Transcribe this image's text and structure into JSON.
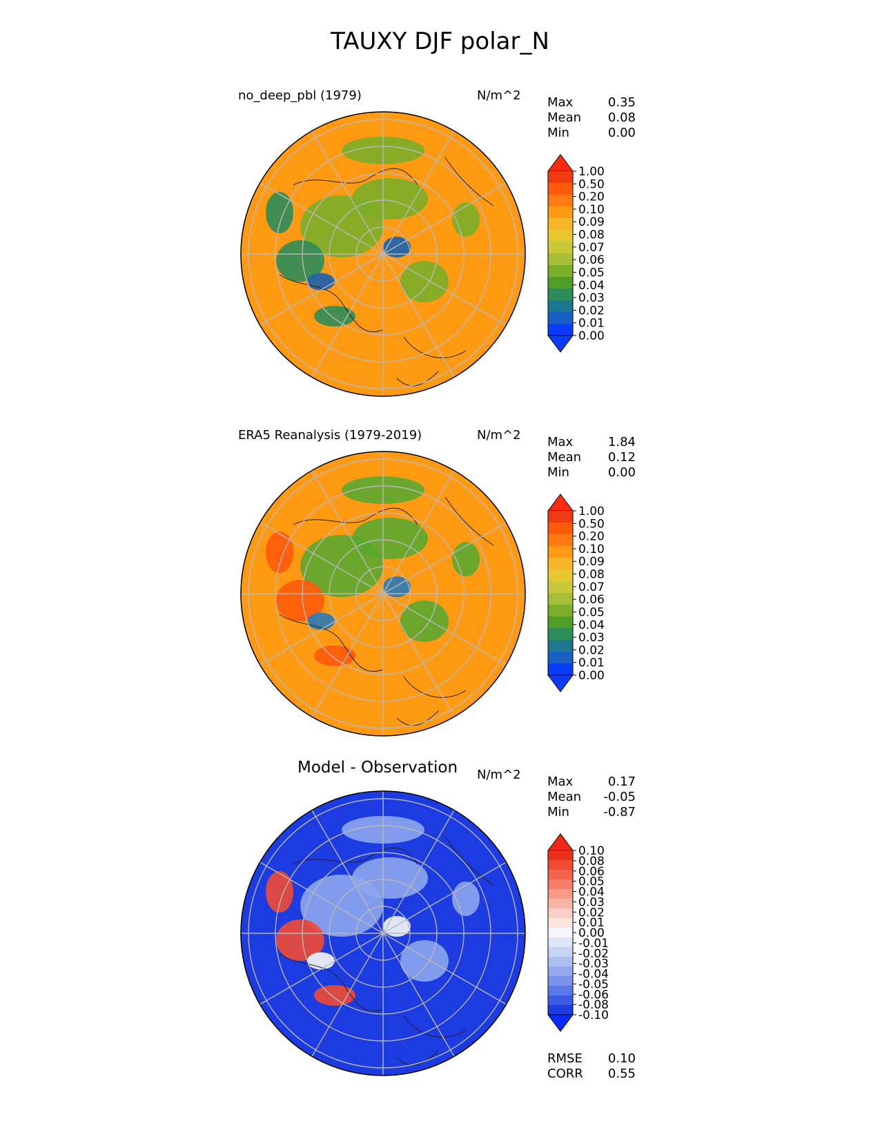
{
  "figure_title": "TAUXY DJF polar_N",
  "panels": [
    {
      "title": "no_deep_pbl (1979)",
      "units": "N/m^2",
      "stats": [
        {
          "label": "Max",
          "value": "0.35"
        },
        {
          "label": "Mean",
          "value": "0.08"
        },
        {
          "label": "Min",
          "value": "0.00"
        }
      ],
      "colorbar": {
        "labels": [
          "1.00",
          "0.50",
          "0.20",
          "0.10",
          "0.09",
          "0.08",
          "0.07",
          "0.06",
          "0.05",
          "0.04",
          "0.03",
          "0.02",
          "0.01",
          "0.00"
        ],
        "colors": [
          "#f03a12",
          "#ff5a0a",
          "#ff7a10",
          "#ff9a12",
          "#f6b52a",
          "#e8c830",
          "#c8c83a",
          "#a8be38",
          "#7cae2a",
          "#4e9e28",
          "#2e8c5a",
          "#1c7890",
          "#1860c4",
          "#0a3cff"
        ],
        "extend_top": "#ff2a10",
        "extend_bottom": "#0a3cff"
      },
      "map_colors": {
        "base": "#ff9a12",
        "ocean_low": "#7cae2a",
        "land_low": "#2e8c5a",
        "lowest": "#1c60b0"
      }
    },
    {
      "title": "ERA5 Reanalysis (1979-2019)",
      "units": "N/m^2",
      "stats": [
        {
          "label": "Max",
          "value": "1.84"
        },
        {
          "label": "Mean",
          "value": "0.12"
        },
        {
          "label": "Min",
          "value": "0.00"
        }
      ],
      "colorbar": {
        "labels": [
          "1.00",
          "0.50",
          "0.20",
          "0.10",
          "0.09",
          "0.08",
          "0.07",
          "0.06",
          "0.05",
          "0.04",
          "0.03",
          "0.02",
          "0.01",
          "0.00"
        ],
        "colors": [
          "#f03a12",
          "#ff5a0a",
          "#ff7a10",
          "#ff9a12",
          "#f6b52a",
          "#e8c830",
          "#c8c83a",
          "#a8be38",
          "#7cae2a",
          "#4e9e28",
          "#2e8c5a",
          "#1c7890",
          "#1860c4",
          "#0a3cff"
        ],
        "extend_top": "#ff2a10",
        "extend_bottom": "#0a3cff"
      },
      "map_colors": {
        "base": "#ff9a12",
        "ocean_low": "#5aa830",
        "land_low": "#ff5a0a",
        "lowest": "#2a7ab8"
      }
    },
    {
      "title": "Model - Observation",
      "units": "N/m^2",
      "stats": [
        {
          "label": "Max",
          "value": "0.17"
        },
        {
          "label": "Mean",
          "value": "-0.05"
        },
        {
          "label": "Min",
          "value": "-0.87"
        }
      ],
      "colorbar": {
        "labels": [
          "0.10",
          "0.08",
          "0.06",
          "0.05",
          "0.04",
          "0.03",
          "0.02",
          "0.01",
          "0.00",
          "-0.01",
          "-0.02",
          "-0.03",
          "-0.04",
          "-0.05",
          "-0.06",
          "-0.08",
          "-0.10"
        ],
        "colors": [
          "#e8301a",
          "#f04a32",
          "#f4644c",
          "#f67e68",
          "#f89a86",
          "#fab4a4",
          "#fccec4",
          "#fde6e0",
          "#f6f6fa",
          "#e0e6fa",
          "#c8d4f6",
          "#aebff2",
          "#94a8ee",
          "#7a92ea",
          "#5c78e6",
          "#3c5ae4",
          "#1c3ce2"
        ],
        "extend_top": "#f0281a",
        "extend_bottom": "#0a2aff"
      },
      "map_colors": {
        "base": "#1c3ce2",
        "ocean_low": "#8ea6ee",
        "land_low": "#f04a32",
        "lowest": "#f6f6fa"
      }
    }
  ],
  "diff_metrics": [
    {
      "label": "RMSE",
      "value": "0.10"
    },
    {
      "label": "CORR",
      "value": "0.55"
    }
  ]
}
